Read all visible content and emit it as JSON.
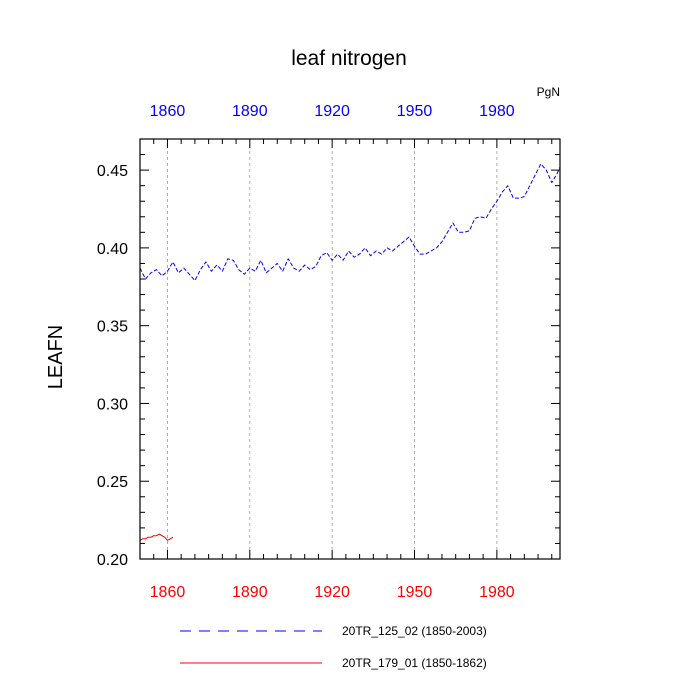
{
  "chart_data": {
    "type": "line",
    "title": "leaf nitrogen",
    "units_label": "PgN",
    "ylabel": "LEAFN",
    "xlabel": "",
    "xlim": [
      1850,
      2003
    ],
    "ylim": [
      0.2,
      0.47
    ],
    "x_ticks": [
      1860,
      1890,
      1920,
      1950,
      1980
    ],
    "x_tick_labels": [
      "1860",
      "1890",
      "1920",
      "1950",
      "1980"
    ],
    "y_ticks": [
      0.2,
      0.25,
      0.3,
      0.35,
      0.4,
      0.45
    ],
    "y_tick_labels": [
      "0.20",
      "0.25",
      "0.30",
      "0.35",
      "0.40",
      "0.45"
    ],
    "grid": "vertical-dashed",
    "colors": {
      "series_blue": "#0000ff",
      "series_red": "#ff0000",
      "top_axis_labels": "#0000ff",
      "bottom_axis_labels": "#ff0000"
    },
    "series": [
      {
        "name": "20TR_125_02 (1850-2003)",
        "color": "#0000ff",
        "style": "dashed",
        "x": [
          1850,
          1852,
          1854,
          1856,
          1858,
          1860,
          1862,
          1864,
          1866,
          1868,
          1870,
          1872,
          1874,
          1876,
          1878,
          1880,
          1882,
          1884,
          1886,
          1888,
          1890,
          1892,
          1894,
          1896,
          1898,
          1900,
          1902,
          1904,
          1906,
          1908,
          1910,
          1912,
          1914,
          1916,
          1918,
          1920,
          1922,
          1924,
          1926,
          1928,
          1930,
          1932,
          1934,
          1936,
          1938,
          1940,
          1942,
          1944,
          1946,
          1948,
          1950,
          1952,
          1954,
          1956,
          1958,
          1960,
          1962,
          1964,
          1966,
          1968,
          1970,
          1972,
          1974,
          1976,
          1978,
          1980,
          1982,
          1984,
          1986,
          1988,
          1990,
          1992,
          1994,
          1996,
          1998,
          2000,
          2002,
          2003
        ],
        "values": [
          0.387,
          0.38,
          0.384,
          0.386,
          0.382,
          0.385,
          0.391,
          0.384,
          0.387,
          0.383,
          0.379,
          0.386,
          0.391,
          0.385,
          0.389,
          0.385,
          0.393,
          0.392,
          0.386,
          0.383,
          0.387,
          0.385,
          0.392,
          0.384,
          0.387,
          0.39,
          0.385,
          0.393,
          0.387,
          0.385,
          0.389,
          0.386,
          0.388,
          0.395,
          0.397,
          0.392,
          0.396,
          0.392,
          0.398,
          0.394,
          0.396,
          0.4,
          0.395,
          0.398,
          0.396,
          0.4,
          0.398,
          0.401,
          0.404,
          0.407,
          0.401,
          0.396,
          0.396,
          0.398,
          0.4,
          0.404,
          0.41,
          0.416,
          0.41,
          0.41,
          0.411,
          0.419,
          0.42,
          0.419,
          0.425,
          0.43,
          0.436,
          0.44,
          0.432,
          0.432,
          0.433,
          0.44,
          0.447,
          0.454,
          0.45,
          0.442,
          0.448,
          0.452
        ]
      },
      {
        "name": "20TR_179_01 (1850-1862)",
        "color": "#ff0000",
        "style": "solid",
        "x": [
          1850,
          1851,
          1852,
          1853,
          1854,
          1855,
          1856,
          1857,
          1858,
          1859,
          1860,
          1861,
          1862
        ],
        "values": [
          0.212,
          0.213,
          0.213,
          0.214,
          0.214,
          0.215,
          0.215,
          0.216,
          0.215,
          0.214,
          0.212,
          0.213,
          0.214
        ]
      }
    ],
    "legend": {
      "placement": "bottom",
      "entries": [
        {
          "label": "20TR_125_02 (1850-2003)",
          "color": "#0000ff",
          "style": "dashed"
        },
        {
          "label": "20TR_179_01 (1850-1862)",
          "color": "#ff0000",
          "style": "solid"
        }
      ]
    }
  }
}
